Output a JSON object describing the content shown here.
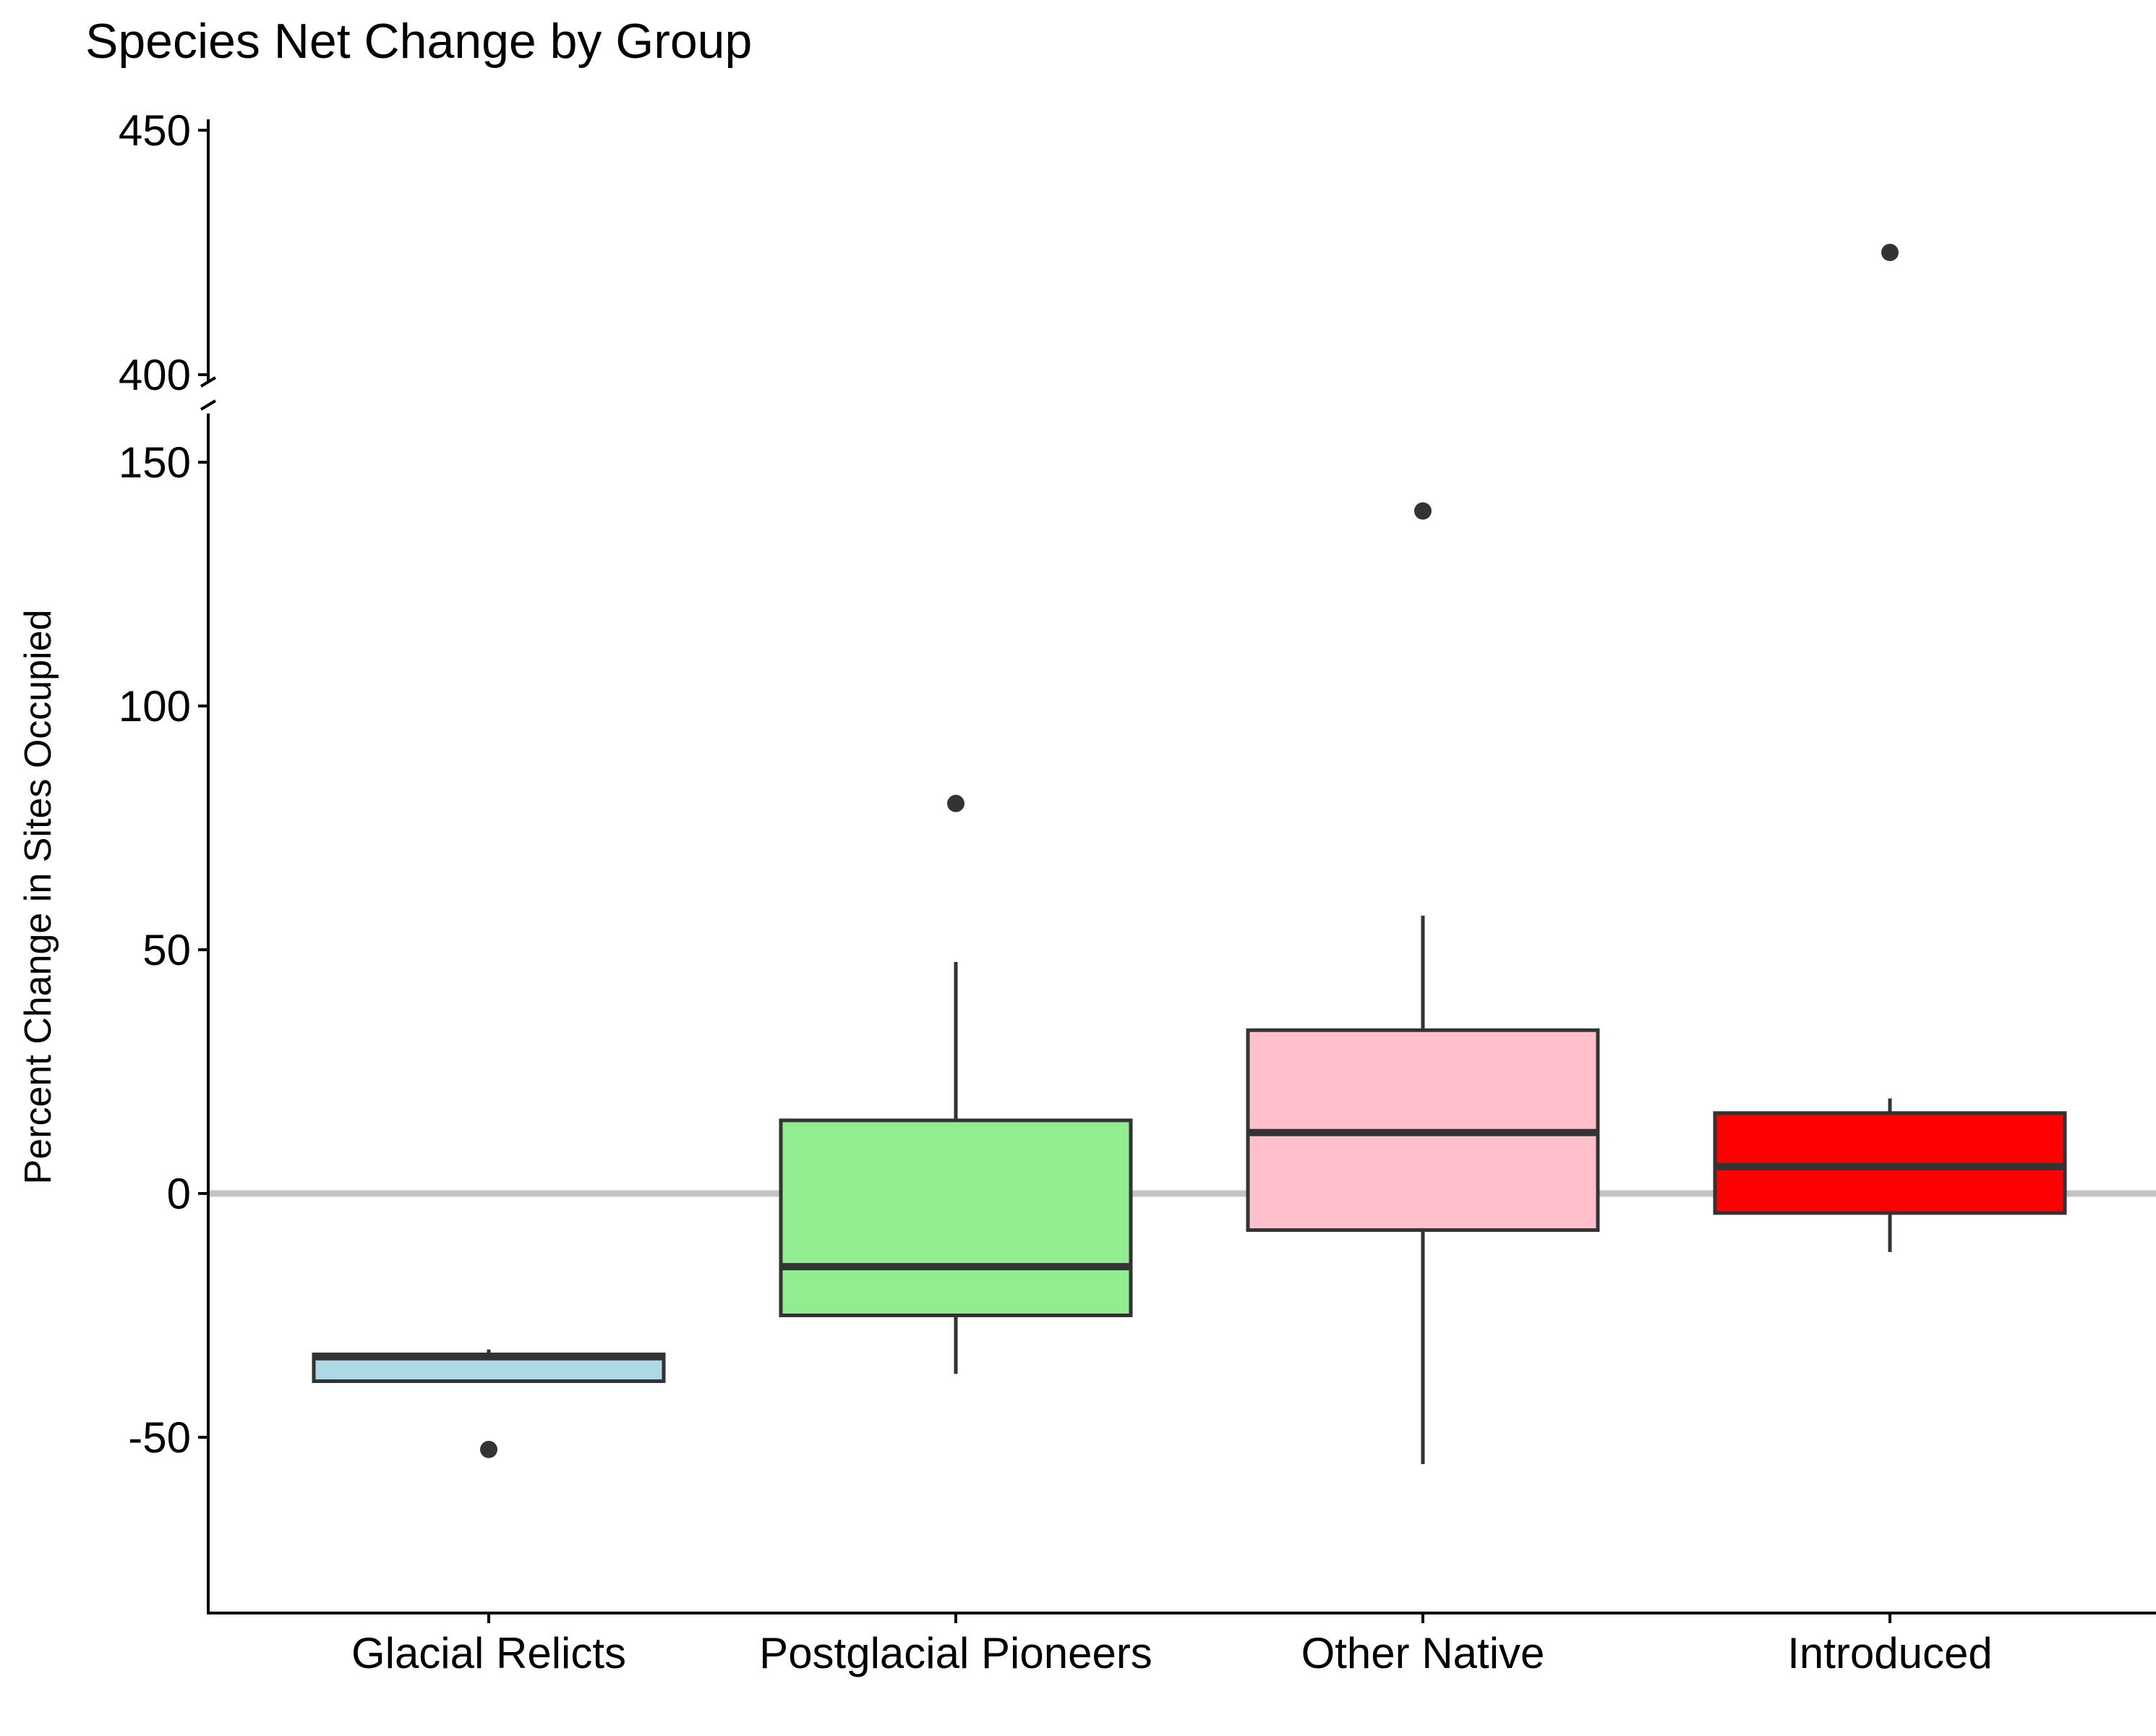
{
  "chart_data": {
    "type": "box",
    "title": "Species Net Change by Group",
    "xlabel": "",
    "ylabel": "Percent Change in Sites Occupied",
    "categories": [
      "Glacial Relicts",
      "Postglacial Pioneers",
      "Other Native",
      "Introduced"
    ],
    "ylim_lower": [
      -86,
      160
    ],
    "ylim_upper": [
      400,
      452
    ],
    "axis_break": "between 160 and 400",
    "yticks_lower": [
      "-50",
      "0",
      "50",
      "100",
      "150"
    ],
    "yticks_upper": [
      "400",
      "450"
    ],
    "reference_line": {
      "y": 0,
      "color": "#c4c4c4"
    },
    "grid": false,
    "legend": "none",
    "boxes": [
      {
        "category": "Glacial Relicts",
        "fill": "#add8e6",
        "whisker_low": -38.5,
        "q1": -38.5,
        "median": -33.5,
        "q3": -33,
        "whisker_high": -32,
        "outliers": [
          -52.5
        ]
      },
      {
        "category": "Postglacial Pioneers",
        "fill": "#90ee90",
        "whisker_low": -37,
        "q1": -25,
        "median": -15,
        "q3": 15,
        "whisker_high": 47.5,
        "outliers": [
          80
        ]
      },
      {
        "category": "Other Native",
        "fill": "#ffc0cb",
        "whisker_low": -55.5,
        "q1": -7.5,
        "median": 12.5,
        "q3": 33.5,
        "whisker_high": 57,
        "outliers": [
          140
        ]
      },
      {
        "category": "Introduced",
        "fill": "#ff0000",
        "whisker_low": -12,
        "q1": -4,
        "median": 5.5,
        "q3": 16.5,
        "whisker_high": 19.5,
        "outliers": [
          425
        ]
      }
    ]
  }
}
